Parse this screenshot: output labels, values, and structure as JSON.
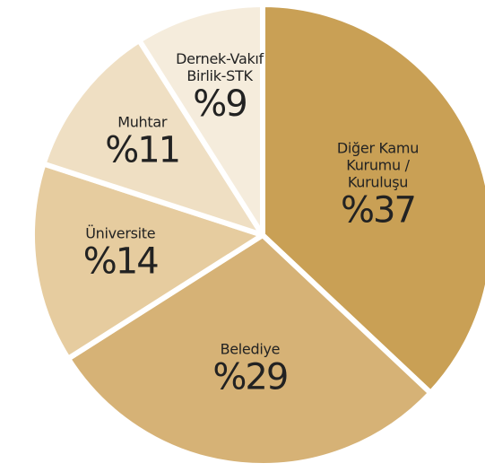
{
  "chart_data": {
    "type": "pie",
    "categories": [
      "Diğer Kamu\nKurumu / Kuruluşu",
      "Belediye",
      "Üniversite",
      "Muhtar",
      "Dernek-Vakıf\nBirlik-STK"
    ],
    "values": [
      37,
      29,
      14,
      11,
      9
    ],
    "value_labels": [
      "%37",
      "%29",
      "%14",
      "%11",
      "%9"
    ],
    "colors": [
      "#c9a055",
      "#d6b276",
      "#e6cc9f",
      "#efdfc3",
      "#f5ecdc"
    ]
  }
}
